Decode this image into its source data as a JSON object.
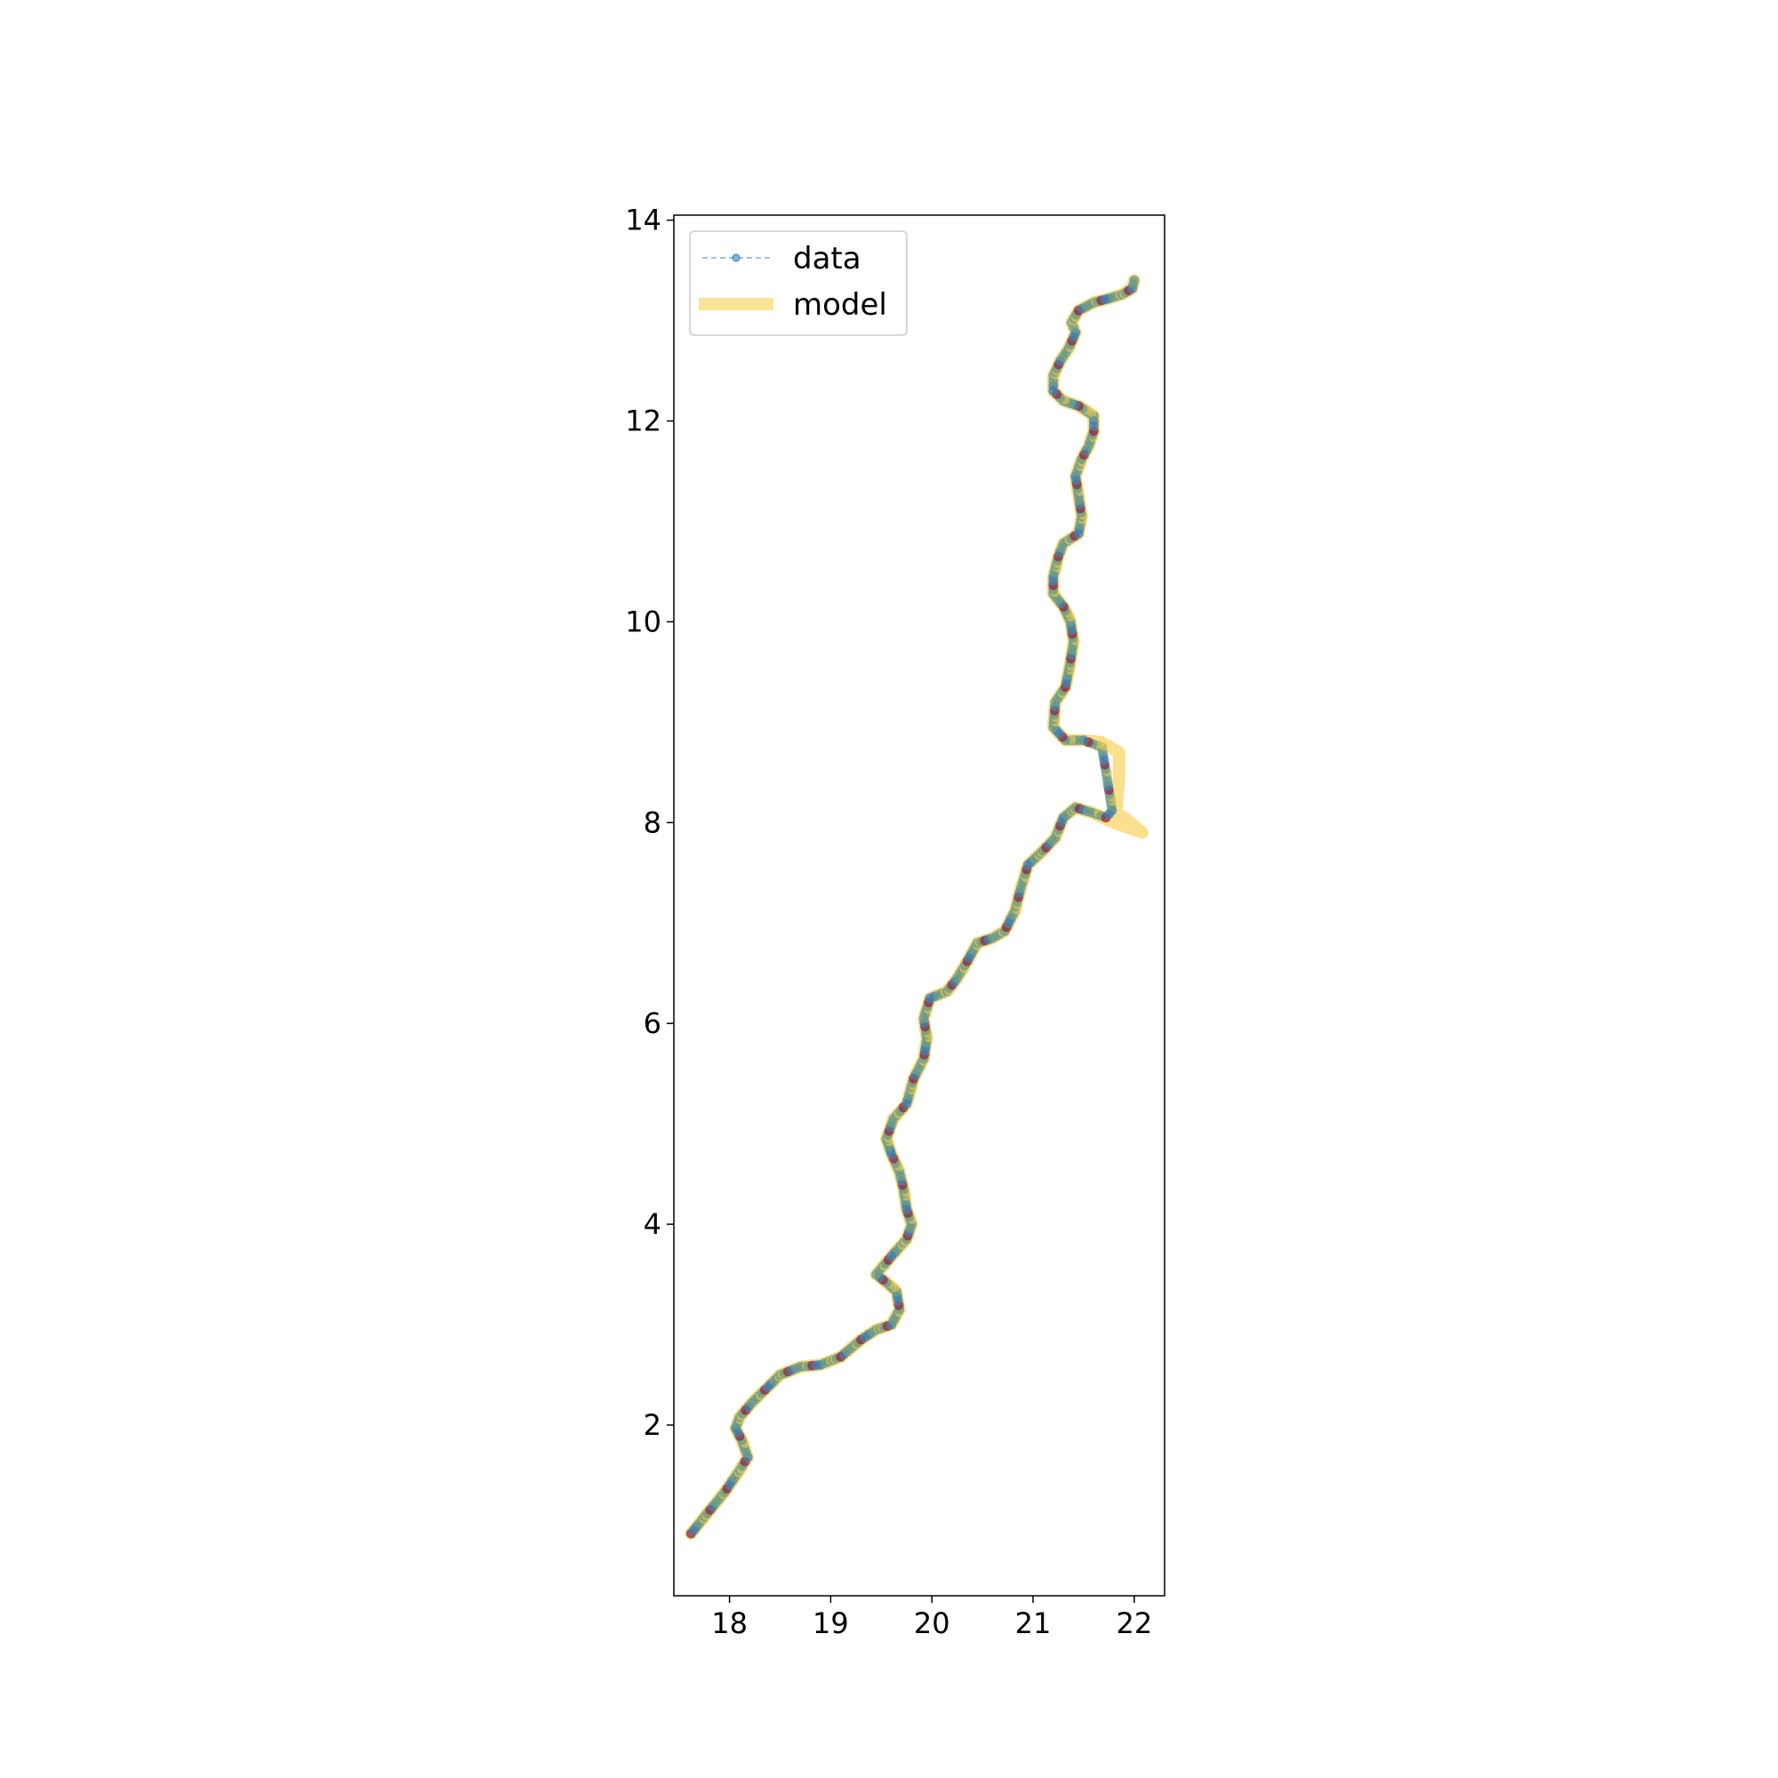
{
  "chart_data": {
    "type": "line",
    "title": "",
    "xlabel": "",
    "ylabel": "",
    "xlim": [
      17.45,
      22.3
    ],
    "ylim": [
      0.3,
      14.05
    ],
    "x_ticks": [
      "18",
      "19",
      "20",
      "21",
      "22"
    ],
    "y_ticks": [
      "2",
      "4",
      "6",
      "8",
      "10",
      "12",
      "14"
    ],
    "grid": false,
    "legend_position": "top-left",
    "legend": [
      "data",
      "model"
    ],
    "colors": {
      "data_line": "#7fb2d6",
      "data_marker": "#3f7faa",
      "model": "#f7cf50",
      "highlight": "#8b2744",
      "overlay": "#6b9a84"
    },
    "series": [
      {
        "name": "data",
        "style": "dashed line with circle markers",
        "points": [
          [
            17.62,
            0.92
          ],
          [
            17.78,
            1.12
          ],
          [
            17.95,
            1.33
          ],
          [
            18.1,
            1.55
          ],
          [
            18.18,
            1.68
          ],
          [
            18.12,
            1.85
          ],
          [
            18.06,
            1.97
          ],
          [
            18.1,
            2.08
          ],
          [
            18.22,
            2.22
          ],
          [
            18.35,
            2.35
          ],
          [
            18.5,
            2.5
          ],
          [
            18.7,
            2.58
          ],
          [
            18.9,
            2.6
          ],
          [
            19.1,
            2.68
          ],
          [
            19.3,
            2.85
          ],
          [
            19.45,
            2.95
          ],
          [
            19.6,
            3.0
          ],
          [
            19.68,
            3.15
          ],
          [
            19.65,
            3.33
          ],
          [
            19.55,
            3.42
          ],
          [
            19.45,
            3.5
          ],
          [
            19.6,
            3.68
          ],
          [
            19.75,
            3.85
          ],
          [
            19.8,
            4.0
          ],
          [
            19.75,
            4.15
          ],
          [
            19.72,
            4.35
          ],
          [
            19.68,
            4.52
          ],
          [
            19.6,
            4.7
          ],
          [
            19.55,
            4.85
          ],
          [
            19.62,
            5.05
          ],
          [
            19.75,
            5.2
          ],
          [
            19.82,
            5.45
          ],
          [
            19.92,
            5.65
          ],
          [
            19.95,
            5.85
          ],
          [
            19.92,
            6.05
          ],
          [
            19.98,
            6.25
          ],
          [
            20.15,
            6.32
          ],
          [
            20.25,
            6.45
          ],
          [
            20.35,
            6.62
          ],
          [
            20.45,
            6.8
          ],
          [
            20.6,
            6.85
          ],
          [
            20.72,
            6.92
          ],
          [
            20.82,
            7.12
          ],
          [
            20.88,
            7.35
          ],
          [
            20.95,
            7.58
          ],
          [
            21.1,
            7.72
          ],
          [
            21.22,
            7.85
          ],
          [
            21.3,
            8.05
          ],
          [
            21.42,
            8.15
          ],
          [
            21.58,
            8.1
          ],
          [
            21.72,
            8.05
          ],
          [
            21.78,
            8.12
          ],
          [
            21.73,
            8.45
          ],
          [
            21.68,
            8.75
          ],
          [
            21.5,
            8.82
          ],
          [
            21.32,
            8.82
          ],
          [
            21.2,
            8.95
          ],
          [
            21.22,
            9.2
          ],
          [
            21.32,
            9.35
          ],
          [
            21.36,
            9.55
          ],
          [
            21.4,
            9.8
          ],
          [
            21.37,
            10.0
          ],
          [
            21.3,
            10.15
          ],
          [
            21.2,
            10.28
          ],
          [
            21.2,
            10.45
          ],
          [
            21.25,
            10.65
          ],
          [
            21.3,
            10.78
          ],
          [
            21.45,
            10.88
          ],
          [
            21.48,
            11.05
          ],
          [
            21.45,
            11.25
          ],
          [
            21.42,
            11.45
          ],
          [
            21.48,
            11.62
          ],
          [
            21.55,
            11.75
          ],
          [
            21.6,
            11.9
          ],
          [
            21.6,
            12.05
          ],
          [
            21.45,
            12.15
          ],
          [
            21.3,
            12.2
          ],
          [
            21.2,
            12.3
          ],
          [
            21.2,
            12.45
          ],
          [
            21.27,
            12.6
          ],
          [
            21.35,
            12.72
          ],
          [
            21.42,
            12.88
          ],
          [
            21.38,
            12.98
          ],
          [
            21.45,
            13.1
          ],
          [
            21.6,
            13.18
          ],
          [
            21.75,
            13.22
          ],
          [
            21.88,
            13.26
          ],
          [
            21.98,
            13.32
          ],
          [
            22.0,
            13.4
          ]
        ]
      },
      {
        "name": "model",
        "style": "thick translucent line",
        "points": [
          [
            17.62,
            0.92
          ],
          [
            17.78,
            1.12
          ],
          [
            17.95,
            1.33
          ],
          [
            18.1,
            1.55
          ],
          [
            18.18,
            1.68
          ],
          [
            18.12,
            1.85
          ],
          [
            18.06,
            1.97
          ],
          [
            18.1,
            2.08
          ],
          [
            18.22,
            2.22
          ],
          [
            18.35,
            2.35
          ],
          [
            18.5,
            2.5
          ],
          [
            18.7,
            2.58
          ],
          [
            18.9,
            2.6
          ],
          [
            19.1,
            2.68
          ],
          [
            19.3,
            2.85
          ],
          [
            19.45,
            2.95
          ],
          [
            19.6,
            3.0
          ],
          [
            19.68,
            3.15
          ],
          [
            19.65,
            3.33
          ],
          [
            19.55,
            3.42
          ],
          [
            19.45,
            3.5
          ],
          [
            19.6,
            3.68
          ],
          [
            19.75,
            3.85
          ],
          [
            19.8,
            4.0
          ],
          [
            19.75,
            4.15
          ],
          [
            19.72,
            4.35
          ],
          [
            19.68,
            4.52
          ],
          [
            19.6,
            4.7
          ],
          [
            19.55,
            4.85
          ],
          [
            19.62,
            5.05
          ],
          [
            19.75,
            5.2
          ],
          [
            19.82,
            5.45
          ],
          [
            19.92,
            5.65
          ],
          [
            19.95,
            5.85
          ],
          [
            19.92,
            6.05
          ],
          [
            19.98,
            6.25
          ],
          [
            20.15,
            6.32
          ],
          [
            20.25,
            6.45
          ],
          [
            20.35,
            6.62
          ],
          [
            20.45,
            6.8
          ],
          [
            20.6,
            6.85
          ],
          [
            20.72,
            6.92
          ],
          [
            20.82,
            7.12
          ],
          [
            20.88,
            7.35
          ],
          [
            20.95,
            7.58
          ],
          [
            21.1,
            7.72
          ],
          [
            21.22,
            7.85
          ],
          [
            21.3,
            8.05
          ],
          [
            21.42,
            8.15
          ],
          [
            21.58,
            8.1
          ],
          [
            21.75,
            8.02
          ],
          [
            22.08,
            7.9
          ],
          [
            21.9,
            8.05
          ],
          [
            21.82,
            8.1
          ],
          [
            21.85,
            8.45
          ],
          [
            21.85,
            8.7
          ],
          [
            21.68,
            8.8
          ],
          [
            21.5,
            8.82
          ],
          [
            21.32,
            8.82
          ],
          [
            21.2,
            8.95
          ],
          [
            21.22,
            9.2
          ],
          [
            21.32,
            9.35
          ],
          [
            21.36,
            9.55
          ],
          [
            21.4,
            9.8
          ],
          [
            21.37,
            10.0
          ],
          [
            21.3,
            10.15
          ],
          [
            21.2,
            10.28
          ],
          [
            21.2,
            10.45
          ],
          [
            21.25,
            10.65
          ],
          [
            21.3,
            10.78
          ],
          [
            21.45,
            10.88
          ],
          [
            21.48,
            11.05
          ],
          [
            21.45,
            11.25
          ],
          [
            21.42,
            11.45
          ],
          [
            21.48,
            11.62
          ],
          [
            21.55,
            11.75
          ],
          [
            21.6,
            11.9
          ],
          [
            21.6,
            12.05
          ],
          [
            21.45,
            12.15
          ],
          [
            21.3,
            12.2
          ],
          [
            21.2,
            12.3
          ],
          [
            21.2,
            12.45
          ],
          [
            21.27,
            12.6
          ],
          [
            21.35,
            12.72
          ],
          [
            21.42,
            12.88
          ],
          [
            21.38,
            12.98
          ],
          [
            21.45,
            13.1
          ],
          [
            21.6,
            13.18
          ],
          [
            21.75,
            13.22
          ],
          [
            21.88,
            13.26
          ],
          [
            21.98,
            13.32
          ],
          [
            22.0,
            13.4
          ]
        ]
      }
    ]
  }
}
